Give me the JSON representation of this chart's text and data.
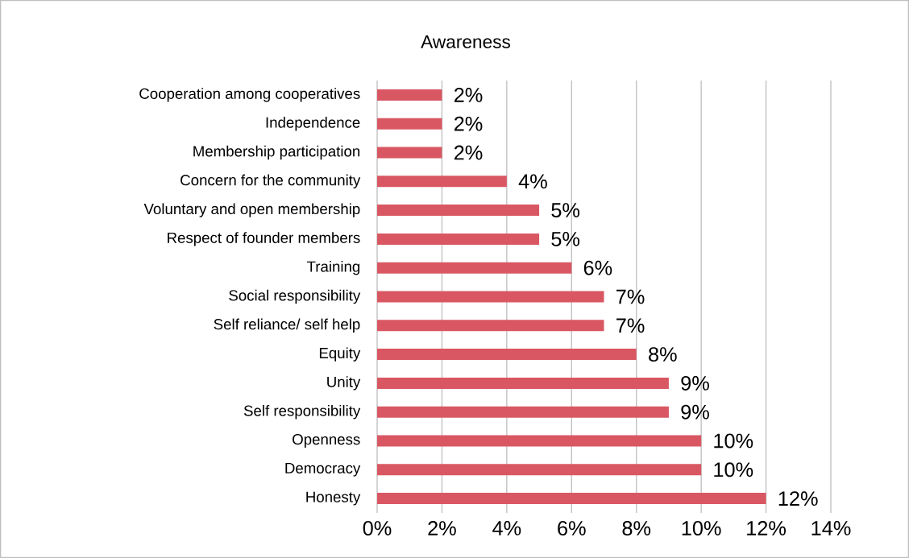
{
  "chart_data": {
    "type": "bar",
    "orientation": "horizontal",
    "title": "Awareness",
    "categories": [
      "Cooperation among cooperatives",
      "Independence",
      "Membership participation",
      "Concern for the community",
      "Voluntary and open membership",
      "Respect of founder members",
      "Training",
      "Social responsibility",
      "Self reliance/ self help",
      "Equity",
      "Unity",
      "Self responsibility",
      "Openness",
      "Democracy",
      "Honesty"
    ],
    "values": [
      2,
      2,
      2,
      4,
      5,
      5,
      6,
      7,
      7,
      8,
      9,
      9,
      10,
      10,
      12
    ],
    "value_labels": [
      "2%",
      "2%",
      "2%",
      "4%",
      "5%",
      "5%",
      "6%",
      "7%",
      "7%",
      "8%",
      "9%",
      "9%",
      "10%",
      "10%",
      "12%"
    ],
    "color": "#d95763",
    "xlim": [
      0,
      14
    ],
    "xticks": [
      {
        "value": 0,
        "label": "0%"
      },
      {
        "value": 2,
        "label": "2%"
      },
      {
        "value": 4,
        "label": "4%"
      },
      {
        "value": 6,
        "label": "6%"
      },
      {
        "value": 8,
        "label": "8%"
      },
      {
        "value": 10,
        "label": "10%"
      },
      {
        "value": 12,
        "label": "12%"
      },
      {
        "value": 14,
        "label": "14%"
      }
    ],
    "grid": "x"
  }
}
